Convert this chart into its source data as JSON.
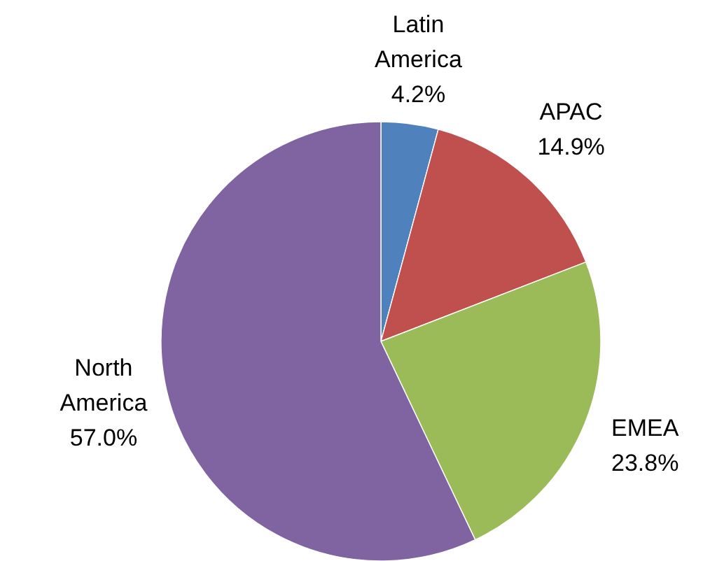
{
  "chart_data": {
    "type": "pie",
    "categories": [
      "Latin America",
      "APAC",
      "EMEA",
      "North America"
    ],
    "values": [
      4.2,
      14.9,
      23.8,
      57.0
    ],
    "value_labels": [
      "4.2%",
      "14.9%",
      "23.8%",
      "57.0%"
    ],
    "colors": [
      "#4f81bd",
      "#c0504d",
      "#9bbb59",
      "#8064a2"
    ]
  }
}
